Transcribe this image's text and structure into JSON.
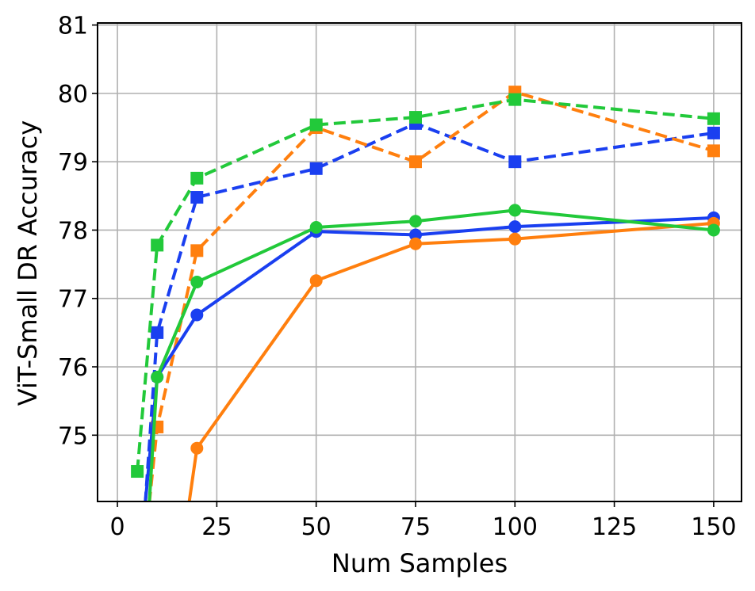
{
  "chart_data": {
    "type": "line",
    "title": "",
    "xlabel": "Num Samples",
    "ylabel": "ViT-Small DR Accuracy",
    "xlim": [
      -5,
      157
    ],
    "ylim": [
      74.03,
      81.03
    ],
    "xticks": [
      0,
      25,
      50,
      75,
      100,
      125,
      150
    ],
    "yticks": [
      75,
      76,
      77,
      78,
      79,
      80,
      81
    ],
    "grid": true,
    "legend": "none",
    "series": [
      {
        "color": "#1a3ff0",
        "line": "dashed",
        "marker": "square",
        "points": [
          {
            "x": 7,
            "y": 74.0
          },
          {
            "x": 10,
            "y": 76.5
          },
          {
            "x": 20,
            "y": 78.48
          },
          {
            "x": 50,
            "y": 78.9
          },
          {
            "x": 75,
            "y": 79.56
          },
          {
            "x": 100,
            "y": 79.0
          },
          {
            "x": 150,
            "y": 79.42
          }
        ]
      },
      {
        "color": "#ff7f0e",
        "line": "dashed",
        "marker": "square",
        "points": [
          {
            "x": 8,
            "y": 74.0
          },
          {
            "x": 10,
            "y": 75.12
          },
          {
            "x": 20,
            "y": 77.7
          },
          {
            "x": 50,
            "y": 79.5
          },
          {
            "x": 75,
            "y": 79.0
          },
          {
            "x": 100,
            "y": 80.02
          },
          {
            "x": 150,
            "y": 79.16
          }
        ]
      },
      {
        "color": "#22c93a",
        "line": "dashed",
        "marker": "square",
        "points": [
          {
            "x": 5,
            "y": 74.47
          },
          {
            "x": 10,
            "y": 77.78
          },
          {
            "x": 20,
            "y": 78.76
          },
          {
            "x": 50,
            "y": 79.54
          },
          {
            "x": 75,
            "y": 79.65
          },
          {
            "x": 100,
            "y": 79.91
          },
          {
            "x": 150,
            "y": 79.63
          }
        ]
      },
      {
        "color": "#1a3ff0",
        "line": "solid",
        "marker": "circle",
        "points": [
          {
            "x": 7,
            "y": 74.0
          },
          {
            "x": 10,
            "y": 75.85
          },
          {
            "x": 20,
            "y": 76.76
          },
          {
            "x": 50,
            "y": 77.98
          },
          {
            "x": 75,
            "y": 77.93
          },
          {
            "x": 100,
            "y": 78.05
          },
          {
            "x": 150,
            "y": 78.18
          }
        ]
      },
      {
        "color": "#ff7f0e",
        "line": "solid",
        "marker": "circle",
        "points": [
          {
            "x": 18,
            "y": 74.0
          },
          {
            "x": 20,
            "y": 74.81
          },
          {
            "x": 50,
            "y": 77.26
          },
          {
            "x": 75,
            "y": 77.8
          },
          {
            "x": 100,
            "y": 77.87
          },
          {
            "x": 150,
            "y": 78.1
          }
        ]
      },
      {
        "color": "#22c93a",
        "line": "solid",
        "marker": "circle",
        "points": [
          {
            "x": 8,
            "y": 74.0
          },
          {
            "x": 10,
            "y": 75.85
          },
          {
            "x": 20,
            "y": 77.24
          },
          {
            "x": 50,
            "y": 78.04
          },
          {
            "x": 75,
            "y": 78.13
          },
          {
            "x": 100,
            "y": 78.29
          },
          {
            "x": 150,
            "y": 78.0
          }
        ]
      }
    ]
  }
}
